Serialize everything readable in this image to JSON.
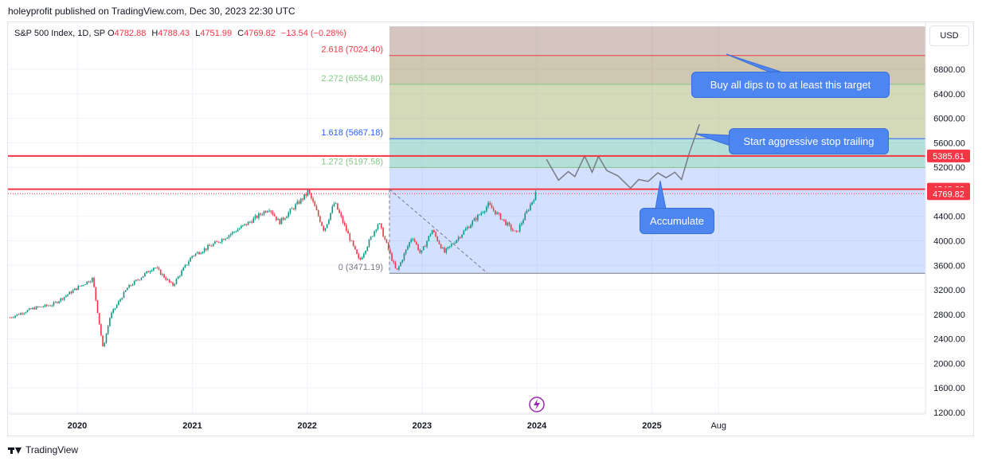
{
  "header": {
    "publisher_line": "holeyprofit published on TradingView.com, Dec 30, 2023 22:30 UTC"
  },
  "legend": {
    "symbol": "S&P 500 Index, 1D, SP",
    "o_label": "O",
    "o_value": "4782.88",
    "h_label": "H",
    "h_value": "4788.43",
    "l_label": "L",
    "l_value": "4751.99",
    "c_label": "C",
    "c_value": "4769.82",
    "change": "−13.54 (−0.28%)"
  },
  "currency_button": "USD",
  "colors": {
    "up": "#089981",
    "down": "#f23645",
    "fib_red": "#f23645",
    "fib_green": "#81c784",
    "fib_blue": "#2962ff",
    "callout": "#4d85f1",
    "price_line": "#f23645"
  },
  "callouts": {
    "buy": "Buy all dips to to at least this target",
    "trail": "Start aggressive stop trailing",
    "accumulate": "Accumulate"
  },
  "chart_data": {
    "type": "candlestick",
    "title": "S&P 500 Index, 1D, SP",
    "x_ticks": [
      "2020",
      "2021",
      "2022",
      "2023",
      "2024",
      "2025",
      "Aug"
    ],
    "y_ticks": [
      "1200.00",
      "1600.00",
      "2000.00",
      "2400.00",
      "2800.00",
      "3200.00",
      "3600.00",
      "4000.00",
      "4400.00",
      "4800.00",
      "5200.00",
      "5600.00",
      "6000.00",
      "6400.00",
      "6800.00"
    ],
    "y_range": [
      1200,
      7200
    ],
    "price_path": [
      {
        "d": "2019-06-01",
        "v": 2750
      },
      {
        "d": "2019-08-15",
        "v": 2900
      },
      {
        "d": "2019-10-15",
        "v": 2960
      },
      {
        "d": "2019-12-31",
        "v": 3230
      },
      {
        "d": "2020-02-19",
        "v": 3386
      },
      {
        "d": "2020-03-23",
        "v": 2237
      },
      {
        "d": "2020-04-15",
        "v": 2780
      },
      {
        "d": "2020-06-08",
        "v": 3230
      },
      {
        "d": "2020-09-02",
        "v": 3580
      },
      {
        "d": "2020-10-30",
        "v": 3270
      },
      {
        "d": "2020-12-31",
        "v": 3756
      },
      {
        "d": "2021-03-15",
        "v": 3960
      },
      {
        "d": "2021-06-30",
        "v": 4300
      },
      {
        "d": "2021-09-02",
        "v": 4537
      },
      {
        "d": "2021-10-04",
        "v": 4300
      },
      {
        "d": "2021-12-31",
        "v": 4766
      },
      {
        "d": "2022-01-04",
        "v": 4818
      },
      {
        "d": "2022-02-24",
        "v": 4170
      },
      {
        "d": "2022-03-29",
        "v": 4630
      },
      {
        "d": "2022-06-16",
        "v": 3666
      },
      {
        "d": "2022-08-16",
        "v": 4305
      },
      {
        "d": "2022-10-12",
        "v": 3491
      },
      {
        "d": "2022-12-01",
        "v": 4080
      },
      {
        "d": "2022-12-28",
        "v": 3783
      },
      {
        "d": "2023-02-02",
        "v": 4179
      },
      {
        "d": "2023-03-13",
        "v": 3808
      },
      {
        "d": "2023-07-31",
        "v": 4588
      },
      {
        "d": "2023-10-27",
        "v": 4117
      },
      {
        "d": "2023-12-29",
        "v": 4770
      }
    ],
    "projection_path": [
      {
        "d": "2024-02-01",
        "v": 5330
      },
      {
        "d": "2024-03-10",
        "v": 4990
      },
      {
        "d": "2024-04-10",
        "v": 5130
      },
      {
        "d": "2024-05-01",
        "v": 5050
      },
      {
        "d": "2024-06-01",
        "v": 5385
      },
      {
        "d": "2024-06-25",
        "v": 5120
      },
      {
        "d": "2024-07-15",
        "v": 5380
      },
      {
        "d": "2024-08-10",
        "v": 5150
      },
      {
        "d": "2024-09-15",
        "v": 5060
      },
      {
        "d": "2024-10-25",
        "v": 4860
      },
      {
        "d": "2024-11-20",
        "v": 5000
      },
      {
        "d": "2024-12-20",
        "v": 4970
      },
      {
        "d": "2025-01-20",
        "v": 5110
      },
      {
        "d": "2025-02-15",
        "v": 5030
      },
      {
        "d": "2025-03-15",
        "v": 5120
      },
      {
        "d": "2025-04-05",
        "v": 5000
      },
      {
        "d": "2025-05-01",
        "v": 5450
      },
      {
        "d": "2025-06-01",
        "v": 5900
      }
    ],
    "fib_levels": [
      {
        "label": "0 (3471.19)",
        "value": 3471.19,
        "color": "#787b86"
      },
      {
        "label": "1.272 (5197.58)",
        "value": 5197.58,
        "color": "#81c784"
      },
      {
        "label": "1.618 (5667.18)",
        "value": 5667.18,
        "color": "#2962ff"
      },
      {
        "label": "2.272 (6554.80)",
        "value": 6554.8,
        "color": "#81c784"
      },
      {
        "label": "2.618 (7024.40)",
        "value": 7024.4,
        "color": "#f23645"
      }
    ],
    "horizontal_lines": [
      5385.61,
      4842.6
    ],
    "price_tags": [
      {
        "text": "5385.61",
        "value": 5385.61
      },
      {
        "text": "4842.60",
        "value": 4842.6
      },
      {
        "text": "4769.82",
        "value": 4769.82
      }
    ]
  }
}
